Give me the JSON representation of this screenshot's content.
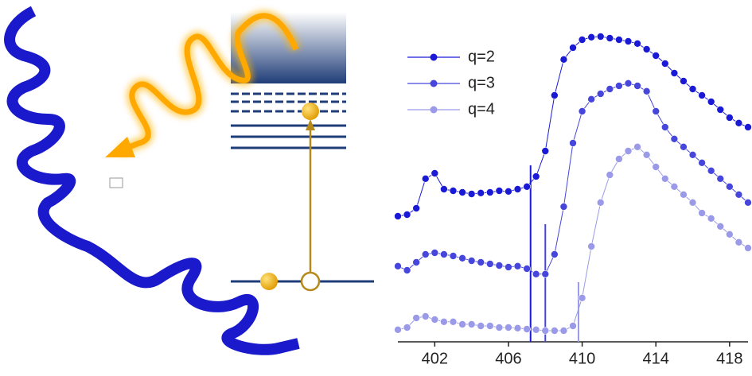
{
  "chart_data": {
    "type": "scatter",
    "x": [
      400,
      400.5,
      401,
      401.5,
      402,
      402.5,
      403,
      403.5,
      404,
      404.5,
      405,
      405.5,
      406,
      406.5,
      407,
      407.5,
      408,
      408.5,
      409,
      409.5,
      410,
      410.5,
      411,
      411.5,
      412,
      412.5,
      413,
      413.5,
      414,
      414.5,
      415,
      415.5,
      416,
      416.5,
      417,
      417.5,
      418,
      418.5,
      419
    ],
    "series": [
      {
        "name": "q=2",
        "color": "#1a1ad6",
        "values": [
          39.5,
          40,
          42,
          51.3,
          53,
          48,
          47.5,
          47,
          46.5,
          46.8,
          47,
          47.5,
          47.3,
          48,
          48.8,
          52,
          60,
          77.5,
          88.8,
          92.5,
          95,
          95.8,
          96,
          95.5,
          95,
          94.5,
          93.8,
          92,
          90,
          87.5,
          84.5,
          82,
          79.5,
          77.5,
          75.5,
          73,
          70.5,
          68.8,
          67.5
        ]
      },
      {
        "name": "q=3",
        "color": "#4646dc",
        "values": [
          23.8,
          22.5,
          25,
          27.5,
          28,
          27.5,
          27,
          26.3,
          25.5,
          25,
          24.5,
          24,
          23.5,
          23.8,
          23,
          21.3,
          21.3,
          27.5,
          42.5,
          62.5,
          72.5,
          76.3,
          78,
          79.5,
          80.5,
          81.3,
          80.5,
          78.8,
          72.5,
          67.5,
          63.8,
          61.3,
          58.8,
          56.3,
          53.8,
          51.3,
          48.8,
          46.3,
          43.8
        ]
      },
      {
        "name": "q=4",
        "color": "#9a9ae8",
        "values": [
          3.8,
          4.5,
          7.5,
          8,
          7,
          6.3,
          6.3,
          5.5,
          5.5,
          5,
          5,
          4.5,
          4.5,
          4.3,
          4,
          3.8,
          3.5,
          3.5,
          3.5,
          5,
          13.8,
          30,
          43.8,
          52.5,
          57.5,
          60,
          61.3,
          58.8,
          55,
          51.3,
          48.8,
          46.3,
          43.8,
          40.5,
          38.8,
          36.3,
          33.8,
          31.3,
          29.5
        ]
      }
    ],
    "vlines": [
      {
        "x": 407.2,
        "y": 55.5,
        "color": "#1a1ad6"
      },
      {
        "x": 408,
        "y": 37,
        "color": "#4646dc"
      },
      {
        "x": 409.8,
        "y": 18.75,
        "color": "#9a9ae8"
      }
    ],
    "xlim": [
      400,
      419
    ],
    "xticks": [
      402,
      406,
      410,
      414,
      418
    ],
    "ylim": [
      0,
      100
    ],
    "legend": "upper-left"
  }
}
